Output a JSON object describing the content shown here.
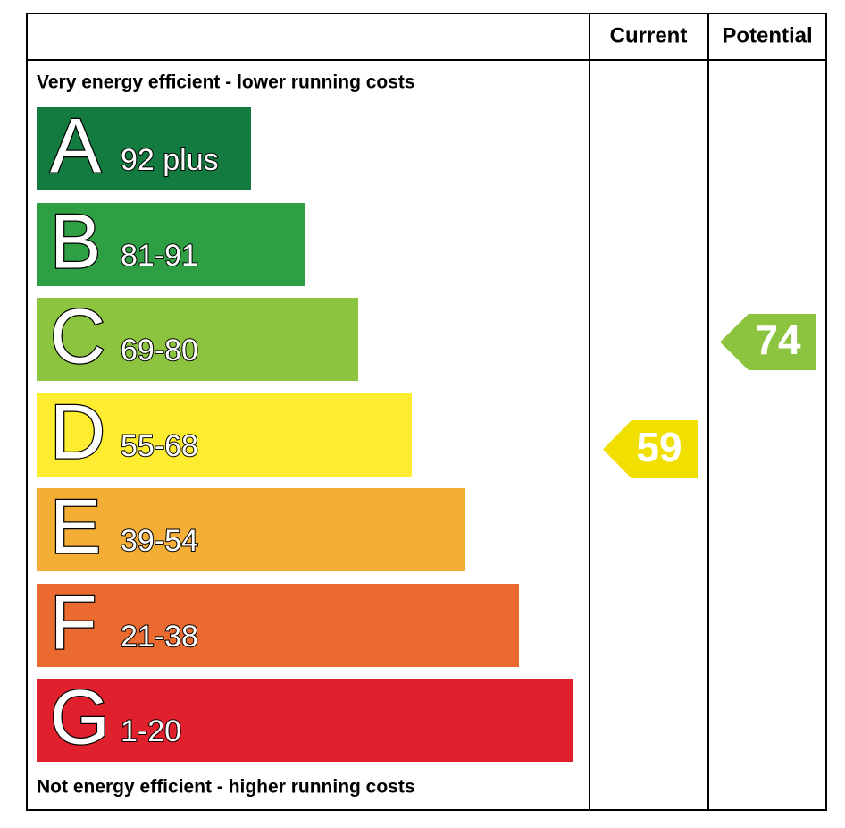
{
  "header": {
    "columns": [
      "Current",
      "Potential"
    ]
  },
  "top_note": "Very energy efficient - lower running costs",
  "bottom_note": "Not energy efficient - higher running costs",
  "bands": [
    {
      "letter": "A",
      "range": "92 plus",
      "color": "#137b3f"
    },
    {
      "letter": "B",
      "range": "81-91",
      "color": "#2f9f43"
    },
    {
      "letter": "C",
      "range": "69-80",
      "color": "#8cc43f"
    },
    {
      "letter": "D",
      "range": "55-68",
      "color": "#fdec2f"
    },
    {
      "letter": "E",
      "range": "39-54",
      "color": "#f4ae35"
    },
    {
      "letter": "F",
      "range": "21-38",
      "color": "#ea6a30"
    },
    {
      "letter": "G",
      "range": "1-20",
      "color": "#e0212d"
    }
  ],
  "current": {
    "value": "59",
    "color": "#f0df00"
  },
  "potential": {
    "value": "74",
    "color": "#8cc43f"
  }
}
